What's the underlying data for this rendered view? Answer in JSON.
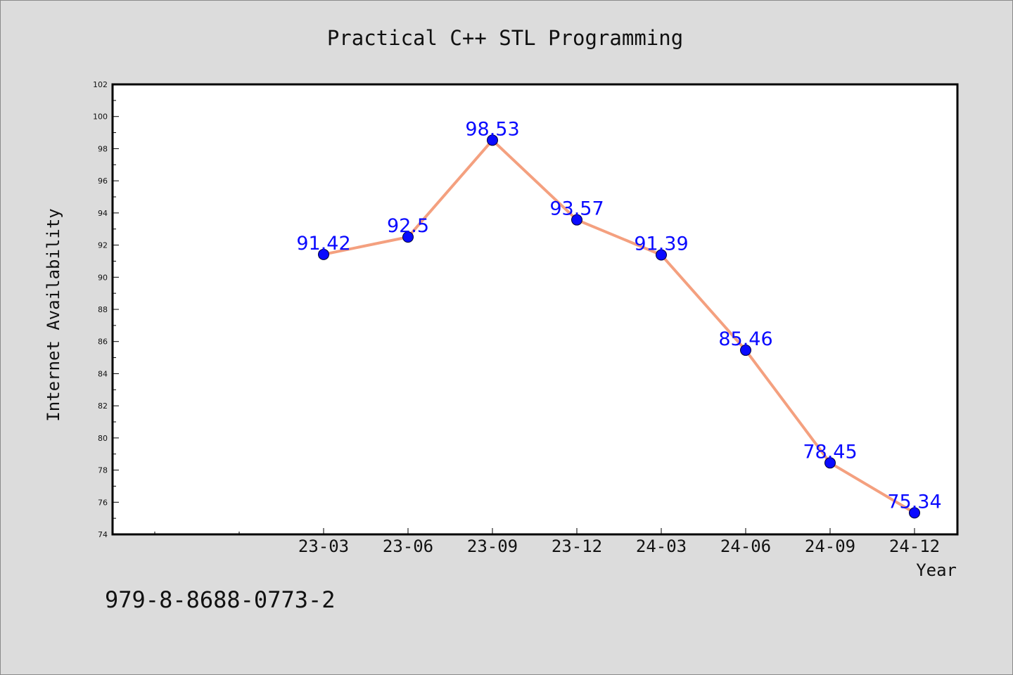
{
  "chart_data": {
    "type": "line",
    "title": "Practical C++ STL Programming",
    "xlabel": "Year",
    "ylabel": "Internet Availability",
    "categories": [
      "23-03",
      "23-06",
      "23-09",
      "23-12",
      "24-03",
      "24-06",
      "24-09",
      "24-12"
    ],
    "series": [
      {
        "values": [
          91.42,
          92.5,
          98.53,
          93.57,
          91.39,
          85.46,
          78.45,
          75.34
        ],
        "labels": [
          "91.42",
          "92.5",
          "98.53",
          "93.57",
          "91.39",
          "85.46",
          "78.45",
          "75.34"
        ],
        "line_color": "#f4a07f",
        "marker_color": "#0a0aff"
      }
    ],
    "ylim": [
      74,
      102
    ],
    "yticks": [
      "74",
      "76",
      "78",
      "80",
      "82",
      "84",
      "86",
      "88",
      "90",
      "92",
      "94",
      "96",
      "98",
      "100",
      "102"
    ],
    "grid": false,
    "legend": "none"
  },
  "footer": {
    "isbn": "979-8-8688-0773-2"
  }
}
